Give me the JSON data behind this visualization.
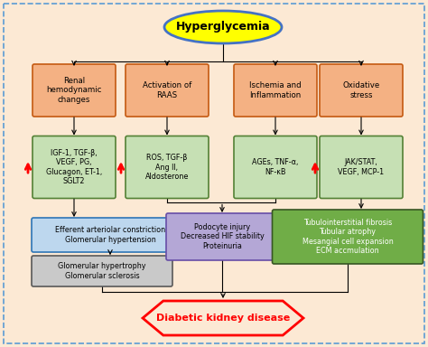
{
  "background_color": "#fce9d4",
  "border_color": "#5b9bd5",
  "title": "Hyperglycemia",
  "title_bg": "#ffff00",
  "title_border": "#4472c4",
  "outcome": "Diabetic kidney disease",
  "outcome_bg": "#fce9d4",
  "outcome_border": "#ff0000",
  "outcome_text_color": "#ff0000",
  "boxes_row1": [
    {
      "text": "Renal\nhemodynamic\nchanges",
      "bg": "#f4b183",
      "border": "#c55a11"
    },
    {
      "text": "Activation of\nRAAS",
      "bg": "#f4b183",
      "border": "#c55a11"
    },
    {
      "text": "Ischemia and\nInflammation",
      "bg": "#f4b183",
      "border": "#c55a11"
    },
    {
      "text": "Oxidative\nstress",
      "bg": "#f4b183",
      "border": "#c55a11"
    }
  ],
  "boxes_row2": [
    {
      "text": "IGF-1, TGF-β,\nVEGF, PG,\nGlucagon, ET-1,\nSGLT2",
      "bg": "#c6e0b4",
      "border": "#538135",
      "arrow": true
    },
    {
      "text": "ROS, TGF-β\nAng II,\nAldosterone",
      "bg": "#c6e0b4",
      "border": "#538135",
      "arrow": true
    },
    {
      "text": "AGEs, TNF-α,\nNF-κB",
      "bg": "#c6e0b4",
      "border": "#538135",
      "arrow": false
    },
    {
      "text": "JAK/STAT,\nVEGF, MCP-1",
      "bg": "#c6e0b4",
      "border": "#538135",
      "arrow": true
    }
  ],
  "box_eff": {
    "text": "Efferent arteriolar constriction\nGlomerular hypertension",
    "bg": "#bdd7ee",
    "border": "#2e75b6"
  },
  "box_pod": {
    "text": "Podocyte injury\nDecreased HIF stability\nProteinuria",
    "bg": "#b4a7d6",
    "border": "#674ea7"
  },
  "box_tub": {
    "text": "Tubulointerstitial fibrosis\nTubular atrophy\nMesangial cell expansion\nECM accmulation",
    "bg": "#70ad47",
    "border": "#375623"
  },
  "box_glo": {
    "text": "Glomerular hypertrophy\nGlomerular sclerosis",
    "bg": "#c9c9c9",
    "border": "#595959"
  }
}
